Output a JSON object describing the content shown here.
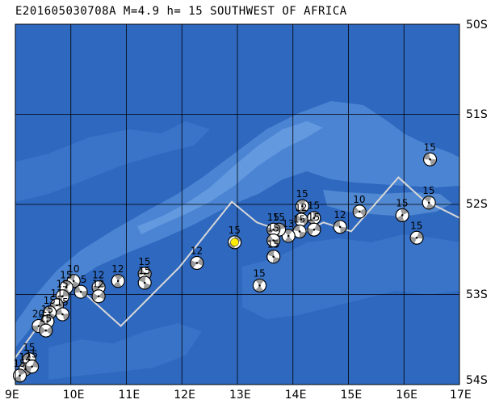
{
  "title": "E201605030708A M=4.9 h= 15 SOUTHWEST OF AFRICA",
  "colors": {
    "ocean": "#2e68bf",
    "ridge": "#4f8ad6",
    "ridge_light": "#6ea2e2",
    "grid": "#000000",
    "boundary": "#d8d8d8",
    "highlight": "#ffee00"
  },
  "map": {
    "lon_range": [
      9,
      17
    ],
    "lat_range": [
      50,
      54
    ],
    "lon_labels": [
      {
        "lon": 9,
        "label": "9E"
      },
      {
        "lon": 10,
        "label": "10E"
      },
      {
        "lon": 11,
        "label": "11E"
      },
      {
        "lon": 12,
        "label": "12E"
      },
      {
        "lon": 13,
        "label": "13E"
      },
      {
        "lon": 14,
        "label": "14E"
      },
      {
        "lon": 15,
        "label": "15E"
      },
      {
        "lon": 16,
        "label": "16E"
      },
      {
        "lon": 17,
        "label": "17E"
      }
    ],
    "lat_labels": [
      {
        "lat": 50,
        "label": "50S"
      },
      {
        "lat": 51,
        "label": "51S"
      },
      {
        "lat": 52,
        "label": "52S"
      },
      {
        "lat": 53,
        "label": "53S"
      },
      {
        "lat": 54,
        "label": "54S"
      }
    ],
    "plate_boundary": [
      [
        9,
        53.7
      ],
      [
        10,
        52.85
      ],
      [
        10.9,
        53.35
      ],
      [
        11.95,
        52.7
      ],
      [
        12.9,
        51.97
      ],
      [
        13.35,
        52.2
      ],
      [
        14.05,
        52.35
      ],
      [
        14.55,
        52.2
      ],
      [
        15.05,
        52.3
      ],
      [
        15.9,
        51.7
      ],
      [
        16.35,
        51.95
      ],
      [
        17,
        52.15
      ]
    ],
    "events": [
      {
        "lon": 16.47,
        "lat": 51.5,
        "depth": "15"
      },
      {
        "lon": 16.45,
        "lat": 51.98,
        "depth": "15"
      },
      {
        "lon": 15.97,
        "lat": 52.12,
        "depth": "15"
      },
      {
        "lon": 16.23,
        "lat": 52.37,
        "depth": "15"
      },
      {
        "lon": 15.2,
        "lat": 52.08,
        "depth": "10"
      },
      {
        "lon": 14.85,
        "lat": 52.25,
        "depth": "12"
      },
      {
        "lon": 14.17,
        "lat": 52.02,
        "depth": "15"
      },
      {
        "lon": 14.38,
        "lat": 52.15,
        "depth": "15"
      },
      {
        "lon": 14.38,
        "lat": 52.28,
        "depth": "15"
      },
      {
        "lon": 14.15,
        "lat": 52.17,
        "depth": "12"
      },
      {
        "lon": 14.12,
        "lat": 52.3,
        "depth": "15"
      },
      {
        "lon": 13.92,
        "lat": 52.35,
        "depth": "13"
      },
      {
        "lon": 13.75,
        "lat": 52.28,
        "depth": "15"
      },
      {
        "lon": 13.65,
        "lat": 52.28,
        "depth": "15"
      },
      {
        "lon": 13.65,
        "lat": 52.4,
        "depth": "15"
      },
      {
        "lon": 13.65,
        "lat": 52.58,
        "depth": "15"
      },
      {
        "lon": 13.4,
        "lat": 52.9,
        "depth": "15"
      },
      {
        "lon": 12.95,
        "lat": 52.42,
        "depth": "15",
        "main": true
      },
      {
        "lon": 12.27,
        "lat": 52.65,
        "depth": "12"
      },
      {
        "lon": 11.33,
        "lat": 52.77,
        "depth": "15"
      },
      {
        "lon": 11.33,
        "lat": 52.87,
        "depth": "15"
      },
      {
        "lon": 10.85,
        "lat": 52.85,
        "depth": "12"
      },
      {
        "lon": 10.5,
        "lat": 52.92,
        "depth": "12"
      },
      {
        "lon": 10.5,
        "lat": 53.02,
        "depth": "12"
      },
      {
        "lon": 10.18,
        "lat": 52.97,
        "depth": "15"
      },
      {
        "lon": 10.05,
        "lat": 52.85,
        "depth": "10"
      },
      {
        "lon": 9.92,
        "lat": 52.92,
        "depth": "15"
      },
      {
        "lon": 9.85,
        "lat": 53.02,
        "depth": "15"
      },
      {
        "lon": 9.75,
        "lat": 53.12,
        "depth": "11"
      },
      {
        "lon": 9.85,
        "lat": 53.22,
        "depth": "15"
      },
      {
        "lon": 9.62,
        "lat": 53.2,
        "depth": "15"
      },
      {
        "lon": 9.58,
        "lat": 53.3,
        "depth": "15"
      },
      {
        "lon": 9.42,
        "lat": 53.35,
        "depth": "20"
      },
      {
        "lon": 9.55,
        "lat": 53.4,
        "depth": "15"
      },
      {
        "lon": 9.25,
        "lat": 53.72,
        "depth": "15"
      },
      {
        "lon": 9.18,
        "lat": 53.83,
        "depth": "12"
      },
      {
        "lon": 9.08,
        "lat": 53.9,
        "depth": "15"
      },
      {
        "lon": 9.3,
        "lat": 53.8,
        "depth": "15"
      }
    ]
  }
}
